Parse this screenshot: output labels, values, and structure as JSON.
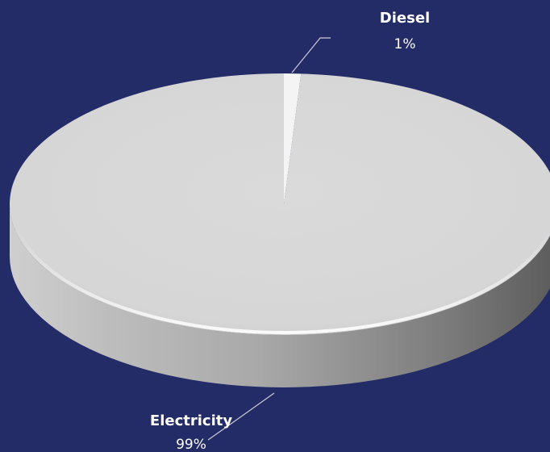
{
  "chart_data": {
    "type": "pie",
    "style": "3d",
    "title": "",
    "slices": [
      {
        "name": "Electricity",
        "value": 99,
        "label": "99%",
        "color": "#d8d8d8"
      },
      {
        "name": "Diesel",
        "value": 1,
        "label": "1%",
        "color": "#f4f4f4"
      }
    ],
    "background": "#232c66"
  }
}
